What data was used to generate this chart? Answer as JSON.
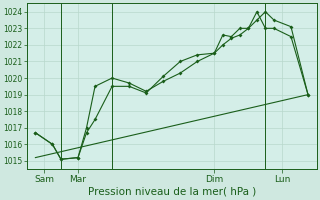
{
  "background_color": "#cfe8e0",
  "plot_bg_color": "#d4eee8",
  "grid_color": "#b8d8cc",
  "line_color": "#1a5e1a",
  "ylim": [
    1014.5,
    1024.5
  ],
  "yticks": [
    1015,
    1016,
    1017,
    1018,
    1019,
    1020,
    1021,
    1022,
    1023,
    1024
  ],
  "xlabel": "Pression niveau de la mer( hPa )",
  "xlabel_fontsize": 7.5,
  "xtick_labels": [
    "Sam",
    "Mar",
    "Dim",
    "Lun"
  ],
  "xtick_positions": [
    0.5,
    2.5,
    10.5,
    14.5
  ],
  "vlines": [
    1.5,
    4.5,
    13.5
  ],
  "line1_x": [
    0,
    1,
    1.5,
    2.5,
    3,
    3.5,
    4.5,
    5.5,
    6.5,
    7.5,
    8.5,
    9.5,
    10.5,
    11,
    11.5,
    12,
    12.5,
    13,
    13.5,
    14,
    15,
    16
  ],
  "line1_y": [
    1016.7,
    1016.0,
    1015.1,
    1015.2,
    1017.0,
    1019.5,
    1020.0,
    1019.7,
    1019.2,
    1019.8,
    1020.3,
    1021.0,
    1021.5,
    1022.6,
    1022.5,
    1023.0,
    1023.0,
    1024.0,
    1023.0,
    1023.0,
    1022.5,
    1019.0
  ],
  "line2_x": [
    0,
    1,
    1.5,
    2.5,
    3,
    3.5,
    4.5,
    5.5,
    6.5,
    7.5,
    8.5,
    9.5,
    10.5,
    11,
    11.5,
    12,
    12.5,
    13,
    13.5,
    14,
    15,
    16
  ],
  "line2_y": [
    1016.7,
    1016.0,
    1015.1,
    1015.2,
    1016.7,
    1017.5,
    1019.5,
    1019.5,
    1019.1,
    1020.1,
    1021.0,
    1021.4,
    1021.5,
    1022.0,
    1022.4,
    1022.6,
    1023.0,
    1023.5,
    1024.0,
    1023.5,
    1023.1,
    1019.0
  ],
  "line3_x": [
    0,
    16
  ],
  "line3_y": [
    1015.2,
    1019.0
  ],
  "xlim": [
    -0.5,
    16.5
  ],
  "ytick_fontsize": 5.5,
  "xtick_fontsize": 6.5
}
